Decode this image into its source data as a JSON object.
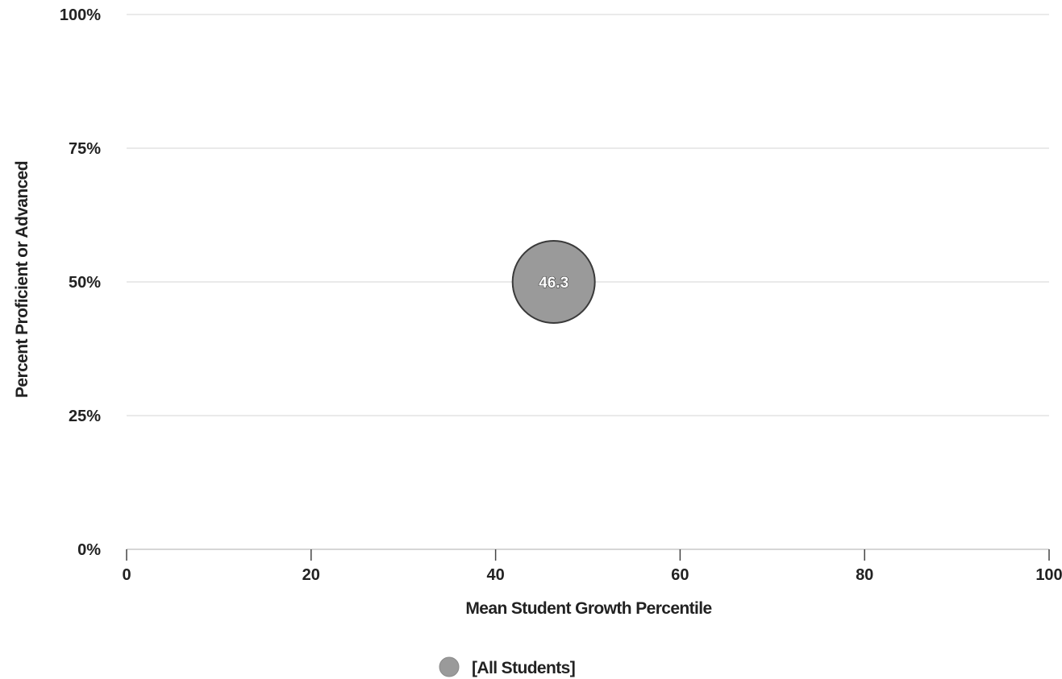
{
  "chart_data": {
    "type": "scatter",
    "title": "",
    "xlabel": "Mean Student Growth Percentile",
    "ylabel": "Percent Proficient or Advanced",
    "xlim": [
      0,
      100
    ],
    "ylim": [
      0,
      100
    ],
    "x_ticks": [
      0,
      20,
      40,
      60,
      80,
      100
    ],
    "x_tick_labels": [
      "0",
      "20",
      "40",
      "60",
      "80",
      "100"
    ],
    "y_ticks": [
      0,
      25,
      50,
      75,
      100
    ],
    "y_tick_labels": [
      "0%",
      "25%",
      "50%",
      "75%",
      "100%"
    ],
    "grid": true,
    "legend_position": "bottom-center",
    "series": [
      {
        "name": "[All Students]",
        "color": "#9a9a9a",
        "points": [
          {
            "x": 46.3,
            "y": 50,
            "label": "46.3"
          }
        ]
      }
    ]
  }
}
